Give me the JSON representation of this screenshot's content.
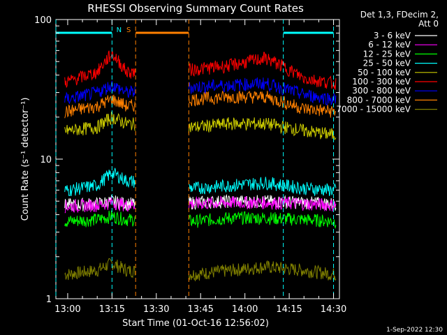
{
  "chart_data": {
    "type": "line",
    "title": "RHESSI Observing Summary Count Rates",
    "xlabel": "Start Time (01-Oct-16 12:56:02)",
    "ylabel": "Count Rate (s⁻¹ detector⁻¹)",
    "y_scale": "log",
    "ylim": [
      1,
      100
    ],
    "xlim": [
      "12:56",
      "14:32"
    ],
    "x_ticks": [
      "13:00",
      "13:15",
      "13:30",
      "13:45",
      "14:00",
      "14:15",
      "14:30"
    ],
    "y_ticks": [
      "1",
      "10",
      "100"
    ],
    "grid": false,
    "legend_header": [
      "Det 1,3, FDecim 2,",
      "Att 0"
    ],
    "legend_position": "top-right, outside plot",
    "footer_date": "1-Sep-2022 12:30",
    "data_gaps": [
      [
        "13:23",
        "13:41"
      ]
    ],
    "series": [
      {
        "name": "3 - 6 keV",
        "color": "#ffffff",
        "x": [
          "13:00",
          "13:10",
          "13:15",
          "13:20",
          "13:43",
          "13:55",
          "14:07",
          "14:20",
          "14:30"
        ],
        "y": [
          4.7,
          4.8,
          5.0,
          4.8,
          4.9,
          5.0,
          5.0,
          4.9,
          4.8
        ]
      },
      {
        "name": "6 - 12 keV",
        "color": "#ff00ff",
        "x": [
          "13:00",
          "13:10",
          "13:15",
          "13:20",
          "13:43",
          "13:55",
          "14:07",
          "14:20",
          "14:30"
        ],
        "y": [
          4.6,
          4.7,
          4.9,
          4.7,
          4.8,
          4.9,
          4.9,
          4.8,
          4.7
        ]
      },
      {
        "name": "12 - 25 keV",
        "color": "#00ff00",
        "x": [
          "13:00",
          "13:10",
          "13:15",
          "13:20",
          "13:43",
          "13:55",
          "14:07",
          "14:20",
          "14:30"
        ],
        "y": [
          3.6,
          3.7,
          3.9,
          3.7,
          3.6,
          3.8,
          3.8,
          3.7,
          3.6
        ]
      },
      {
        "name": "25 - 50 keV",
        "color": "#00ffff",
        "x": [
          "13:00",
          "13:10",
          "13:15",
          "13:20",
          "13:43",
          "13:55",
          "14:07",
          "14:20",
          "14:30"
        ],
        "y": [
          6.0,
          6.5,
          8.0,
          7.0,
          6.2,
          6.5,
          6.8,
          6.2,
          6.0
        ]
      },
      {
        "name": "50 - 100 keV",
        "color": "#cccc00",
        "x": [
          "13:00",
          "13:10",
          "13:15",
          "13:20",
          "13:43",
          "13:55",
          "14:07",
          "14:20",
          "14:30"
        ],
        "y": [
          16,
          17,
          20,
          18,
          17,
          18,
          18,
          16,
          15
        ]
      },
      {
        "name": "100 - 300 keV",
        "color": "#ff0000",
        "x": [
          "13:00",
          "13:10",
          "13:15",
          "13:20",
          "13:43",
          "13:55",
          "14:07",
          "14:20",
          "14:30"
        ],
        "y": [
          36,
          42,
          57,
          42,
          44,
          47,
          53,
          38,
          35
        ]
      },
      {
        "name": "300 - 800 keV",
        "color": "#0000ff",
        "x": [
          "13:00",
          "13:10",
          "13:15",
          "13:20",
          "13:43",
          "13:55",
          "14:07",
          "14:20",
          "14:30"
        ],
        "y": [
          27,
          30,
          34,
          30,
          33,
          34,
          35,
          29,
          27
        ]
      },
      {
        "name": "800 - 7000 keV",
        "color": "#ff8000",
        "x": [
          "13:00",
          "13:10",
          "13:15",
          "13:20",
          "13:43",
          "13:55",
          "14:07",
          "14:20",
          "14:30"
        ],
        "y": [
          22,
          24,
          27,
          24,
          27,
          28,
          28,
          23,
          22
        ]
      },
      {
        "name": "7000 - 15000 keV",
        "color": "#808000",
        "x": [
          "13:00",
          "13:10",
          "13:15",
          "13:20",
          "13:43",
          "13:55",
          "14:07",
          "14:20",
          "14:30"
        ],
        "y": [
          1.5,
          1.6,
          1.8,
          1.6,
          1.5,
          1.6,
          1.7,
          1.6,
          1.5
        ]
      }
    ],
    "annotations": [
      {
        "label": "N",
        "color": "#00ffff",
        "intervals": [
          [
            "12:56",
            "13:15"
          ],
          [
            "14:13",
            "14:30"
          ]
        ]
      },
      {
        "label": "S",
        "color": "#ff8000",
        "intervals": [
          [
            "13:23",
            "13:41"
          ]
        ]
      }
    ]
  }
}
